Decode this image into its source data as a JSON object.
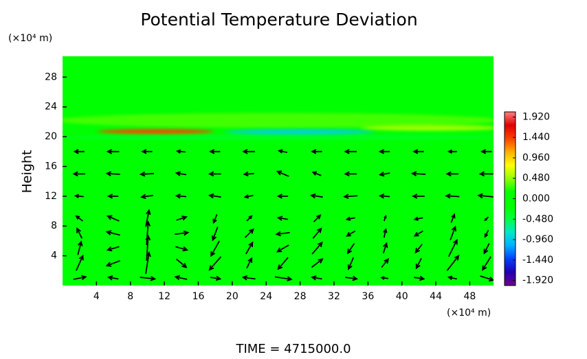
{
  "chart_data": {
    "type": "vector-field",
    "title": "Potential Temperature Deviation",
    "xlabel": "(×10⁴ m)",
    "ylabel": "Height",
    "yunit": "(×10⁴ m)",
    "footer": "TIME  =  4715000.0",
    "xlim": [
      0,
      50.8
    ],
    "ylim": [
      0,
      30.8
    ],
    "xticks": [
      4,
      8,
      12,
      16,
      20,
      24,
      28,
      32,
      36,
      40,
      44,
      48
    ],
    "yticks": [
      4,
      8,
      12,
      16,
      20,
      24,
      28
    ],
    "background_value": 0,
    "field_features": [
      {
        "x": [
          0,
          50.8
        ],
        "z": [
          21.2,
          23.2
        ],
        "value": 0.3
      },
      {
        "x": [
          0,
          50.8
        ],
        "z": [
          19.6,
          20.2
        ],
        "value": -0.35
      },
      {
        "x": [
          5,
          17
        ],
        "z": [
          20.4,
          21.0
        ],
        "value": 1.4
      },
      {
        "x": [
          20,
          36
        ],
        "z": [
          20.3,
          21.0
        ],
        "value": -0.9
      },
      {
        "x": [
          36,
          50.8
        ],
        "z": [
          20.8,
          21.6
        ],
        "value": 0.5
      }
    ],
    "colorbar": {
      "clim": [
        -2.04,
        2.04
      ],
      "colormap": [
        "#70008c",
        "#2000b0",
        "#0040ff",
        "#00b0ff",
        "#00e8c8",
        "#00ff40",
        "#00ff00",
        "#00ff00",
        "#90ff00",
        "#ffff00",
        "#ffb000",
        "#ff4000",
        "#e00000",
        "#ff8080"
      ],
      "ticks": [
        {
          "value": 1.92,
          "label": "1.920"
        },
        {
          "value": 1.44,
          "label": "1.440"
        },
        {
          "value": 0.96,
          "label": "0.960"
        },
        {
          "value": 0.48,
          "label": "0.480"
        },
        {
          "value": 0,
          "label": "0.000"
        },
        {
          "value": -0.48,
          "label": "-0.480"
        },
        {
          "value": -0.96,
          "label": "-0.960"
        },
        {
          "value": -1.44,
          "label": "-1.440"
        },
        {
          "value": -1.92,
          "label": "-1.920"
        }
      ]
    },
    "arrow_color": "#000000",
    "vectors": {
      "x": [
        2,
        6,
        10,
        14,
        18,
        22,
        26,
        30,
        34,
        38,
        42,
        46,
        50
      ],
      "z": [
        1,
        3,
        5,
        7,
        9,
        12,
        15,
        18
      ],
      "u": [
        [
          1.5,
          -1.2,
          1.8,
          -1.4,
          1.2,
          -1.5,
          2.0,
          -1.2,
          1.4,
          -0.8,
          1.2,
          -1.0,
          1.6
        ],
        [
          0.8,
          -1.6,
          0.4,
          1.2,
          -1.4,
          0.6,
          -1.2,
          1.3,
          -0.6,
          0.8,
          -0.6,
          1.4,
          -1.0
        ],
        [
          0.4,
          -1.4,
          0.2,
          1.4,
          -1.0,
          0.8,
          -1.4,
          1.2,
          -0.8,
          0.4,
          -0.8,
          1.0,
          -0.6
        ],
        [
          -0.6,
          -1.6,
          0.2,
          1.6,
          -0.6,
          1.0,
          -1.6,
          1.0,
          -1.0,
          0.2,
          -1.0,
          0.6,
          -0.4
        ],
        [
          -0.8,
          -1.4,
          0.4,
          1.2,
          -0.4,
          0.6,
          -1.2,
          0.8,
          -1.0,
          0.2,
          -1.0,
          0.4,
          -0.4
        ],
        [
          -1.0,
          -1.2,
          -1.4,
          -1.2,
          -1.4,
          -1.0,
          -1.2,
          -1.4,
          -1.6,
          -1.2,
          -1.4,
          -1.6,
          -2.0
        ],
        [
          -1.4,
          -1.6,
          -1.6,
          -1.2,
          -1.4,
          -1.2,
          -1.4,
          -1.0,
          -1.4,
          -1.2,
          -1.6,
          -1.4,
          -1.6
        ],
        [
          -1.2,
          -1.4,
          -1.2,
          -1.0,
          -1.2,
          -1.4,
          -1.0,
          -1.2,
          -1.4,
          -1.2,
          -1.2,
          -1.0,
          -1.2
        ]
      ],
      "w": [
        [
          0.3,
          0.2,
          -0.2,
          0.3,
          -0.2,
          0.2,
          -0.3,
          0.2,
          -0.2,
          0.1,
          -0.2,
          0.2,
          -0.5
        ],
        [
          1.8,
          -0.6,
          2.6,
          -1.0,
          -1.6,
          1.2,
          -1.4,
          1.0,
          -1.4,
          1.0,
          -1.2,
          1.8,
          -1.6
        ],
        [
          1.6,
          -0.4,
          3.0,
          -0.4,
          -1.8,
          1.4,
          -0.8,
          1.4,
          -1.2,
          1.2,
          -1.0,
          2.0,
          -1.2
        ],
        [
          1.2,
          0.4,
          2.8,
          0.2,
          -1.6,
          1.0,
          -0.2,
          1.2,
          -0.6,
          1.0,
          -0.6,
          1.6,
          -0.8
        ],
        [
          0.6,
          0.6,
          2.0,
          0.4,
          -1.0,
          0.6,
          0.2,
          0.8,
          -0.2,
          0.6,
          -0.2,
          1.0,
          -0.4
        ],
        [
          0.1,
          0.0,
          -0.2,
          0.1,
          0.2,
          -0.2,
          0.0,
          0.2,
          -0.1,
          0.1,
          0.0,
          0.1,
          0.2
        ],
        [
          0.0,
          0.1,
          -0.1,
          0.2,
          0.0,
          -0.1,
          0.6,
          0.4,
          0.0,
          -0.2,
          0.1,
          0.0,
          0.0
        ],
        [
          0.0,
          0.0,
          0.0,
          0.1,
          0.0,
          0.0,
          0.2,
          0.0,
          0.0,
          0.0,
          0.0,
          0.0,
          0.0
        ]
      ]
    }
  }
}
